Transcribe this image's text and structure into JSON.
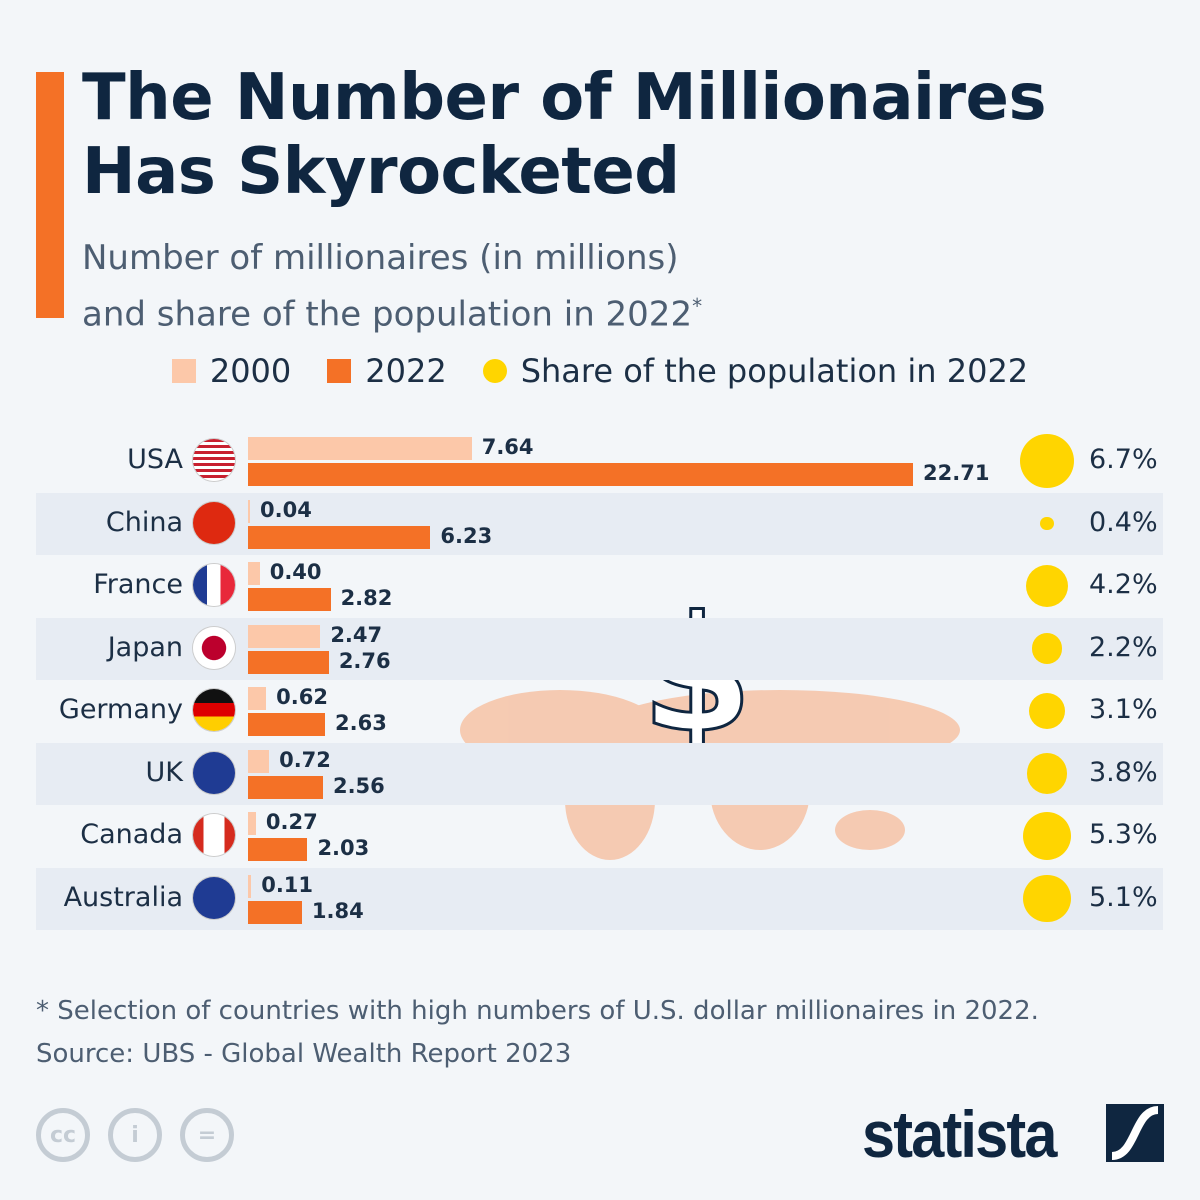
{
  "title": "The Number of Millionaires Has Skyrocketed",
  "subtitle_line1": "Number of millionaires (in millions)",
  "subtitle_line2": "and share of the population in 2022",
  "subtitle_mark": "*",
  "colors": {
    "y2000": "#fcc8a9",
    "y2022": "#f47126",
    "share": "#ffd500",
    "stripe": "#e7ecf3"
  },
  "chart_data": {
    "type": "bar",
    "orientation": "horizontal",
    "categories": [
      "USA",
      "China",
      "France",
      "Japan",
      "Germany",
      "UK",
      "Canada",
      "Australia"
    ],
    "series": [
      {
        "name": "2000",
        "values": [
          7.64,
          0.04,
          0.4,
          2.47,
          0.62,
          0.72,
          0.27,
          0.11
        ],
        "labels": [
          "7.64",
          "0.04",
          "0.40",
          "2.47",
          "0.62",
          "0.72",
          "0.27",
          "0.11"
        ]
      },
      {
        "name": "2022",
        "values": [
          22.71,
          6.23,
          2.82,
          2.76,
          2.63,
          2.56,
          2.03,
          1.84
        ],
        "labels": [
          "22.71",
          "6.23",
          "2.82",
          "2.76",
          "2.63",
          "2.56",
          "2.03",
          "1.84"
        ]
      },
      {
        "name": "Share of the population in 2022",
        "type": "bubble",
        "values": [
          6.7,
          0.4,
          4.2,
          2.2,
          3.1,
          3.8,
          5.3,
          5.1
        ],
        "labels": [
          "6.7%",
          "0.4%",
          "4.2%",
          "2.2%",
          "3.1%",
          "3.8%",
          "5.3%",
          "5.1%"
        ]
      }
    ],
    "flags": [
      "us-flag-icon",
      "china-flag-icon",
      "france-flag-icon",
      "japan-flag-icon",
      "germany-flag-icon",
      "uk-flag-icon",
      "canada-flag-icon",
      "australia-flag-icon"
    ],
    "legend_position": "top",
    "grid": false
  },
  "footnote": "* Selection of countries with high numbers of U.S. dollar millionaires in 2022.",
  "source": "Source: UBS - Global Wealth Report 2023",
  "license_icons": [
    "cc",
    "i",
    "="
  ],
  "brand": "statista"
}
